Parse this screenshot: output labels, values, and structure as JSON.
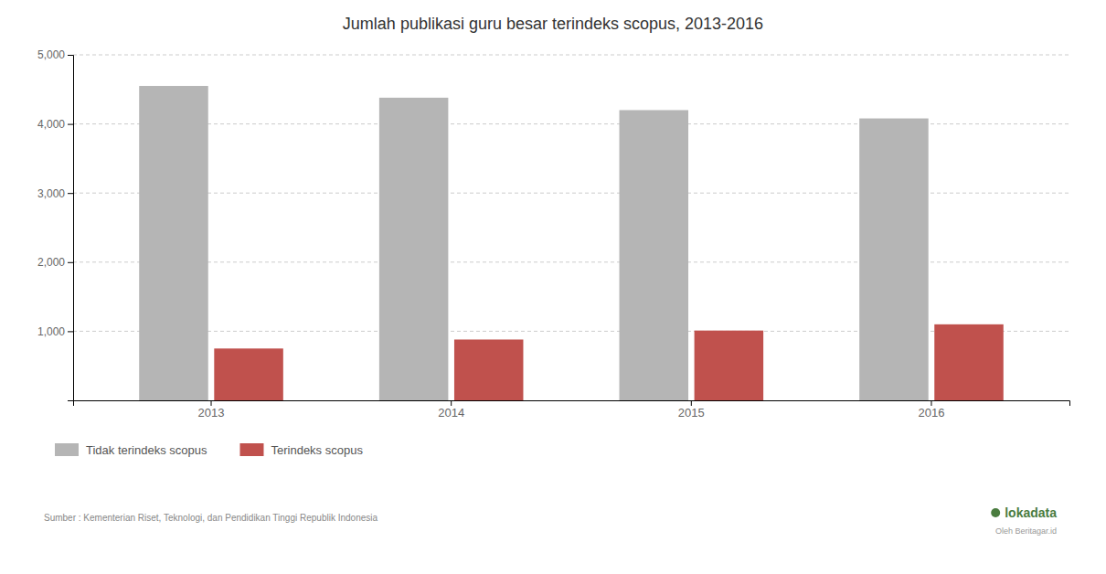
{
  "chart_data": {
    "type": "bar",
    "title": "Jumlah publikasi guru besar terindeks scopus, 2013-2016",
    "categories": [
      "2013",
      "2014",
      "2015",
      "2016"
    ],
    "series": [
      {
        "name": "Tidak terindeks scopus",
        "color": "#b5b5b5",
        "values": [
          4550,
          4380,
          4200,
          4080
        ]
      },
      {
        "name": "Terindeks scopus",
        "color": "#c0514d",
        "values": [
          750,
          880,
          1010,
          1100
        ]
      }
    ],
    "ylim": [
      0,
      5000
    ],
    "yticks": [
      {
        "value": 1000,
        "label": "1,000"
      },
      {
        "value": 2000,
        "label": "2,000"
      },
      {
        "value": 3000,
        "label": "3,000"
      },
      {
        "value": 4000,
        "label": "4,000"
      },
      {
        "value": 5000,
        "label": "5,000"
      }
    ],
    "grid": true,
    "legend": "bottom",
    "annotations": [
      "Sumber : Kementerian Riset, Teknologi, dan Pendidikan Tinggi Republik Indonesia",
      "lokadata",
      "Oleh Beritagar.id"
    ]
  }
}
